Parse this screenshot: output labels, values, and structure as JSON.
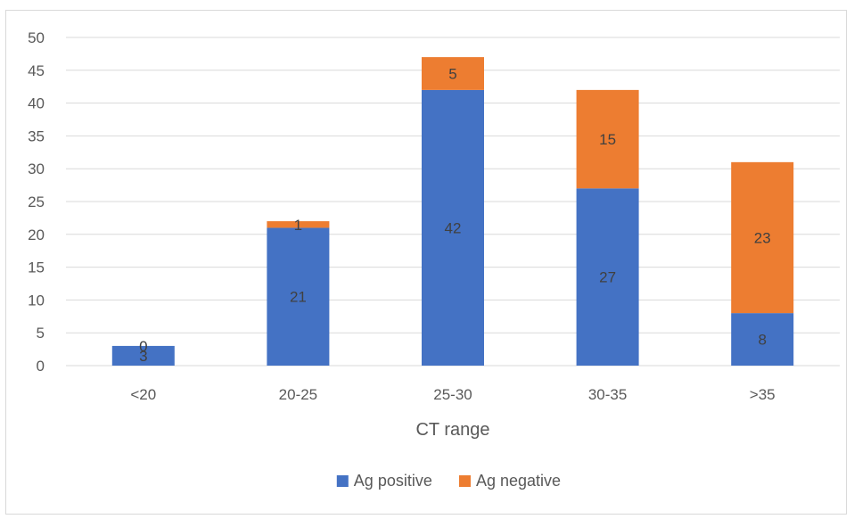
{
  "chart_data": {
    "type": "bar",
    "stacked": true,
    "title": "",
    "xlabel": "CT range",
    "ylabel": "",
    "categories": [
      "<20",
      "20-25",
      "25-30",
      "30-35",
      ">35"
    ],
    "series": [
      {
        "name": "Ag positive",
        "color": "#4472c4",
        "values": [
          3,
          21,
          42,
          27,
          8
        ]
      },
      {
        "name": "Ag negative",
        "color": "#ed7d31",
        "values": [
          0,
          1,
          5,
          15,
          23
        ]
      }
    ],
    "ylim": [
      0,
      50
    ],
    "yticks": [
      0,
      5,
      10,
      15,
      20,
      25,
      30,
      35,
      40,
      45,
      50
    ],
    "grid": true,
    "legend": "bottom",
    "data_labels": true
  }
}
